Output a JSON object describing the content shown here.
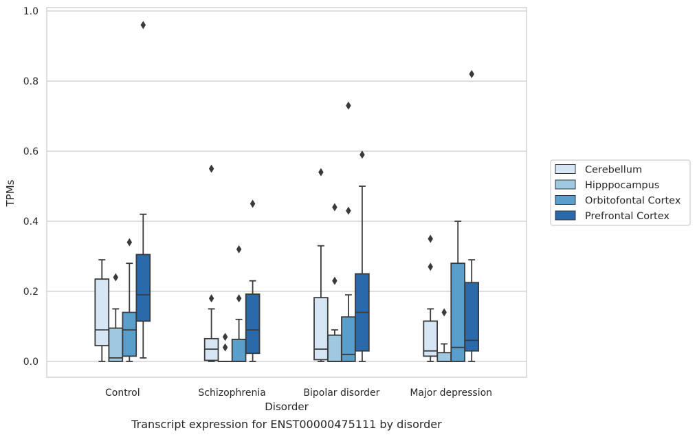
{
  "chart_data": {
    "type": "box",
    "xlabel": "Disorder",
    "ylabel": "TPMs",
    "caption": "Transcript expression for ENST00000475111 by disorder",
    "ylim": [
      -0.045,
      1.01
    ],
    "yticks": [
      "0.0",
      "0.2",
      "0.4",
      "0.6",
      "0.8",
      "1.0"
    ],
    "grid": true,
    "legend_position": "right",
    "categories": [
      "Control",
      "Schizophrenia",
      "Bipolar disorder",
      "Major depression"
    ],
    "series": [
      {
        "name": "Cerebellum",
        "color": "#d6e6f4",
        "boxes": [
          {
            "whislo": 0.0,
            "q1": 0.045,
            "med": 0.09,
            "q3": 0.235,
            "whishi": 0.29,
            "fliers": []
          },
          {
            "whislo": 0.0,
            "q1": 0.003,
            "med": 0.035,
            "q3": 0.065,
            "whishi": 0.15,
            "fliers": [
              0.55,
              0.18
            ]
          },
          {
            "whislo": 0.0,
            "q1": 0.005,
            "med": 0.035,
            "q3": 0.182,
            "whishi": 0.33,
            "fliers": [
              0.54
            ]
          },
          {
            "whislo": 0.0,
            "q1": 0.015,
            "med": 0.03,
            "q3": 0.115,
            "whishi": 0.15,
            "fliers": [
              0.35,
              0.27
            ]
          }
        ]
      },
      {
        "name": "Hipppocampus",
        "color": "#9fc9e0",
        "boxes": [
          {
            "whislo": 0.0,
            "q1": 0.0,
            "med": 0.01,
            "q3": 0.095,
            "whishi": 0.15,
            "fliers": [
              0.24
            ]
          },
          {
            "whislo": 0.0,
            "q1": 0.0,
            "med": 0.0,
            "q3": 0.0,
            "whishi": 0.0,
            "fliers": [
              0.07,
              0.04
            ]
          },
          {
            "whislo": 0.0,
            "q1": 0.0,
            "med": 0.0,
            "q3": 0.075,
            "whishi": 0.09,
            "fliers": [
              0.44,
              0.23
            ]
          },
          {
            "whislo": 0.0,
            "q1": 0.0,
            "med": 0.0,
            "q3": 0.025,
            "whishi": 0.05,
            "fliers": [
              0.14
            ]
          }
        ]
      },
      {
        "name": "Orbitofontal Cortex",
        "color": "#5a9fcb",
        "boxes": [
          {
            "whislo": 0.0,
            "q1": 0.015,
            "med": 0.09,
            "q3": 0.14,
            "whishi": 0.28,
            "fliers": [
              0.34
            ]
          },
          {
            "whislo": 0.0,
            "q1": 0.0,
            "med": 0.0,
            "q3": 0.063,
            "whishi": 0.12,
            "fliers": [
              0.32,
              0.18
            ]
          },
          {
            "whislo": 0.0,
            "q1": 0.0,
            "med": 0.02,
            "q3": 0.127,
            "whishi": 0.19,
            "fliers": [
              0.73,
              0.43
            ]
          },
          {
            "whislo": 0.0,
            "q1": 0.0,
            "med": 0.04,
            "q3": 0.28,
            "whishi": 0.4,
            "fliers": []
          }
        ]
      },
      {
        "name": "Prefrontal Cortex",
        "color": "#2a69aa",
        "boxes": [
          {
            "whislo": 0.01,
            "q1": 0.115,
            "med": 0.19,
            "q3": 0.305,
            "whishi": 0.42,
            "fliers": [
              0.96
            ]
          },
          {
            "whislo": 0.0,
            "q1": 0.023,
            "med": 0.09,
            "q3": 0.192,
            "whishi": 0.23,
            "fliers": [
              0.45
            ]
          },
          {
            "whislo": 0.0,
            "q1": 0.03,
            "med": 0.14,
            "q3": 0.25,
            "whishi": 0.5,
            "fliers": [
              0.59
            ]
          },
          {
            "whislo": 0.0,
            "q1": 0.03,
            "med": 0.06,
            "q3": 0.225,
            "whishi": 0.29,
            "fliers": [
              0.82
            ]
          }
        ]
      }
    ]
  }
}
